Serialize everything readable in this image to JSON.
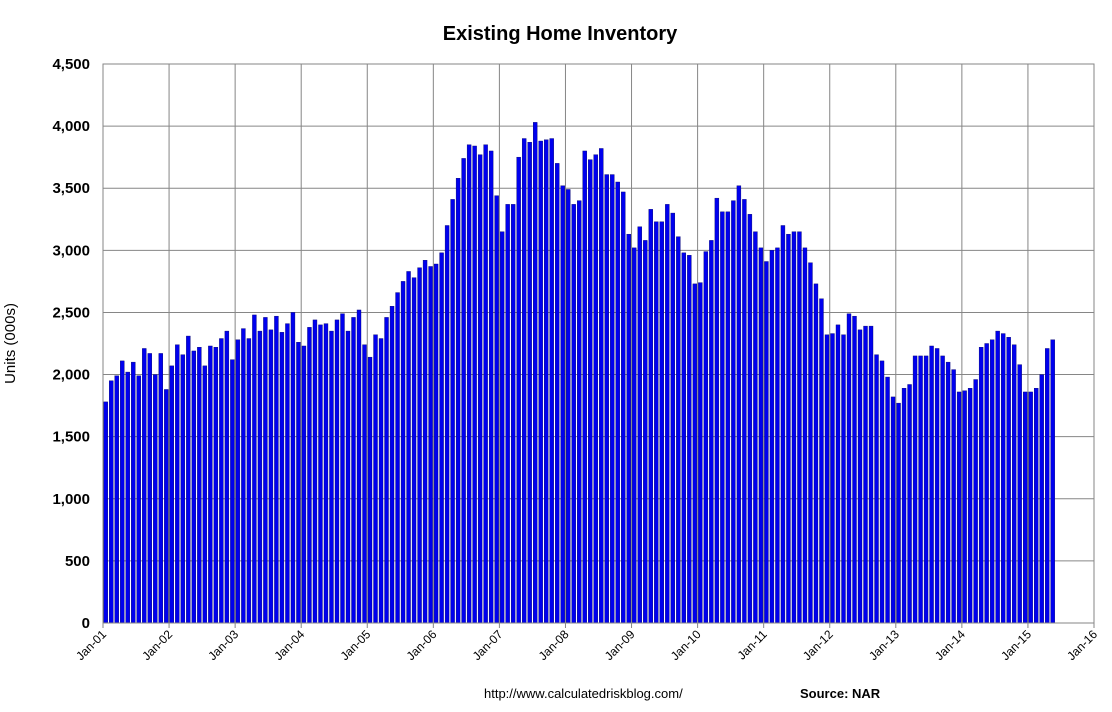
{
  "chart_data": {
    "type": "bar",
    "title": "Existing Home Inventory",
    "xlabel": "",
    "ylabel": "Units (000s)",
    "ylim": [
      0,
      4500
    ],
    "yticks": [
      0,
      500,
      1000,
      1500,
      2000,
      2500,
      3000,
      3500,
      4000,
      4500
    ],
    "ytick_labels": [
      "0",
      "500",
      "1,000",
      "1,500",
      "2,000",
      "2,500",
      "3,000",
      "3,500",
      "4,000",
      "4,500"
    ],
    "x_start": "2001-01",
    "xtick_labels": [
      "Jan-01",
      "Jan-02",
      "Jan-03",
      "Jan-04",
      "Jan-05",
      "Jan-06",
      "Jan-07",
      "Jan-08",
      "Jan-09",
      "Jan-10",
      "Jan-11",
      "Jan-12",
      "Jan-13",
      "Jan-14",
      "Jan-15",
      "Jan-16"
    ],
    "xlim": [
      "2001-01",
      "2016-01"
    ],
    "grid": true,
    "legend": "none",
    "series": [
      {
        "color": "#0000ee",
        "edge_color": "#00006e",
        "values": [
          1780,
          1950,
          1990,
          2110,
          2020,
          2100,
          1990,
          2210,
          2170,
          2000,
          2170,
          1880,
          2070,
          2240,
          2160,
          2310,
          2190,
          2220,
          2070,
          2230,
          2220,
          2290,
          2350,
          2120,
          2280,
          2370,
          2290,
          2480,
          2350,
          2460,
          2360,
          2470,
          2340,
          2410,
          2500,
          2260,
          2230,
          2380,
          2440,
          2400,
          2410,
          2350,
          2440,
          2490,
          2350,
          2460,
          2520,
          2240,
          2140,
          2320,
          2290,
          2460,
          2550,
          2660,
          2750,
          2830,
          2780,
          2860,
          2920,
          2870,
          2890,
          2980,
          3200,
          3410,
          3580,
          3740,
          3850,
          3840,
          3770,
          3850,
          3800,
          3440,
          3150,
          3370,
          3370,
          3750,
          3900,
          3870,
          4030,
          3880,
          3890,
          3900,
          3700,
          3520,
          3490,
          3370,
          3400,
          3800,
          3730,
          3770,
          3820,
          3610,
          3610,
          3550,
          3470,
          3130,
          3020,
          3190,
          3080,
          3330,
          3230,
          3230,
          3370,
          3300,
          3110,
          2980,
          2960,
          2730,
          2740,
          2990,
          3080,
          3420,
          3310,
          3310,
          3400,
          3520,
          3410,
          3290,
          3150,
          3020,
          2910,
          3000,
          3020,
          3200,
          3130,
          3150,
          3150,
          3020,
          2900,
          2730,
          2610,
          2320,
          2330,
          2400,
          2320,
          2490,
          2470,
          2360,
          2390,
          2390,
          2160,
          2110,
          1980,
          1820,
          1770,
          1890,
          1920,
          2150,
          2150,
          2150,
          2230,
          2210,
          2150,
          2100,
          2040,
          1860,
          1870,
          1890,
          1960,
          2220,
          2250,
          2280,
          2350,
          2330,
          2300,
          2240,
          2080,
          1860,
          1860,
          1890,
          2000,
          2210,
          2280
        ]
      }
    ],
    "annotations": [
      "http://www.calculatedriskblog.com/",
      "Source: NAR"
    ]
  }
}
